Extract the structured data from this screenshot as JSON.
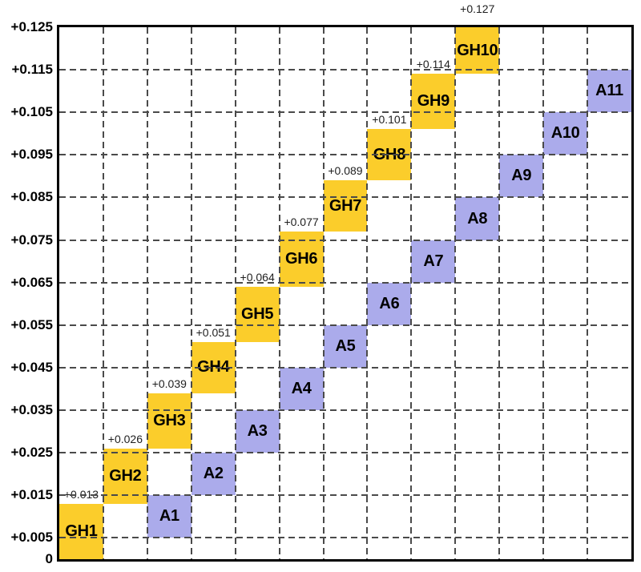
{
  "chart_data": {
    "type": "bar",
    "subtype": "staircase-range-boxes",
    "title": "",
    "xlabel": "",
    "ylabel": "",
    "ylim": [
      0,
      0.125
    ],
    "columns": 13,
    "grid": {
      "on": true,
      "style": "dashed",
      "color": "#4a4a4a"
    },
    "colors": {
      "gh_box": "#FBCD2B",
      "a_box": "#ABABEB",
      "axis": "#000000",
      "annotation_text": "#1f1f1f"
    },
    "y_ticks": [
      {
        "value": 0,
        "label": "0"
      },
      {
        "value": 0.005,
        "label": "+0.005"
      },
      {
        "value": 0.015,
        "label": "+0.015"
      },
      {
        "value": 0.025,
        "label": "+0.025"
      },
      {
        "value": 0.035,
        "label": "+0.035"
      },
      {
        "value": 0.045,
        "label": "+0.045"
      },
      {
        "value": 0.055,
        "label": "+0.055"
      },
      {
        "value": 0.065,
        "label": "+0.065"
      },
      {
        "value": 0.075,
        "label": "+0.075"
      },
      {
        "value": 0.085,
        "label": "+0.085"
      },
      {
        "value": 0.095,
        "label": "+0.095"
      },
      {
        "value": 0.105,
        "label": "+0.105"
      },
      {
        "value": 0.115,
        "label": "+0.115"
      },
      {
        "value": 0.125,
        "label": "+0.125"
      }
    ],
    "series": [
      {
        "name": "GH",
        "color": "#FBCD2B",
        "boxes": [
          {
            "label": "GH1",
            "column": 1,
            "from": 0,
            "to": 0.013,
            "annotation": "+0.013"
          },
          {
            "label": "GH2",
            "column": 2,
            "from": 0.013,
            "to": 0.026,
            "annotation": "+0.026"
          },
          {
            "label": "GH3",
            "column": 3,
            "from": 0.026,
            "to": 0.039,
            "annotation": "+0.039"
          },
          {
            "label": "GH4",
            "column": 4,
            "from": 0.039,
            "to": 0.051,
            "annotation": "+0.051"
          },
          {
            "label": "GH5",
            "column": 5,
            "from": 0.051,
            "to": 0.064,
            "annotation": "+0.064"
          },
          {
            "label": "GH6",
            "column": 6,
            "from": 0.064,
            "to": 0.077,
            "annotation": "+0.077"
          },
          {
            "label": "GH7",
            "column": 7,
            "from": 0.077,
            "to": 0.089,
            "annotation": "+0.089"
          },
          {
            "label": "GH8",
            "column": 8,
            "from": 0.089,
            "to": 0.101,
            "annotation": "+0.101"
          },
          {
            "label": "GH9",
            "column": 9,
            "from": 0.101,
            "to": 0.114,
            "annotation": "+0.114"
          },
          {
            "label": "GH10",
            "column": 10,
            "from": 0.114,
            "to": 0.127,
            "annotation": "+0.127"
          }
        ]
      },
      {
        "name": "A",
        "color": "#ABABEB",
        "boxes": [
          {
            "label": "A1",
            "column": 3,
            "from": 0.005,
            "to": 0.015
          },
          {
            "label": "A2",
            "column": 4,
            "from": 0.015,
            "to": 0.025
          },
          {
            "label": "A3",
            "column": 5,
            "from": 0.025,
            "to": 0.035
          },
          {
            "label": "A4",
            "column": 6,
            "from": 0.035,
            "to": 0.045
          },
          {
            "label": "A5",
            "column": 7,
            "from": 0.045,
            "to": 0.055
          },
          {
            "label": "A6",
            "column": 8,
            "from": 0.055,
            "to": 0.065
          },
          {
            "label": "A7",
            "column": 9,
            "from": 0.065,
            "to": 0.075
          },
          {
            "label": "A8",
            "column": 10,
            "from": 0.075,
            "to": 0.085
          },
          {
            "label": "A9",
            "column": 11,
            "from": 0.085,
            "to": 0.095
          },
          {
            "label": "A10",
            "column": 12,
            "from": 0.095,
            "to": 0.105
          },
          {
            "label": "A11",
            "column": 13,
            "from": 0.105,
            "to": 0.115
          }
        ]
      }
    ]
  }
}
